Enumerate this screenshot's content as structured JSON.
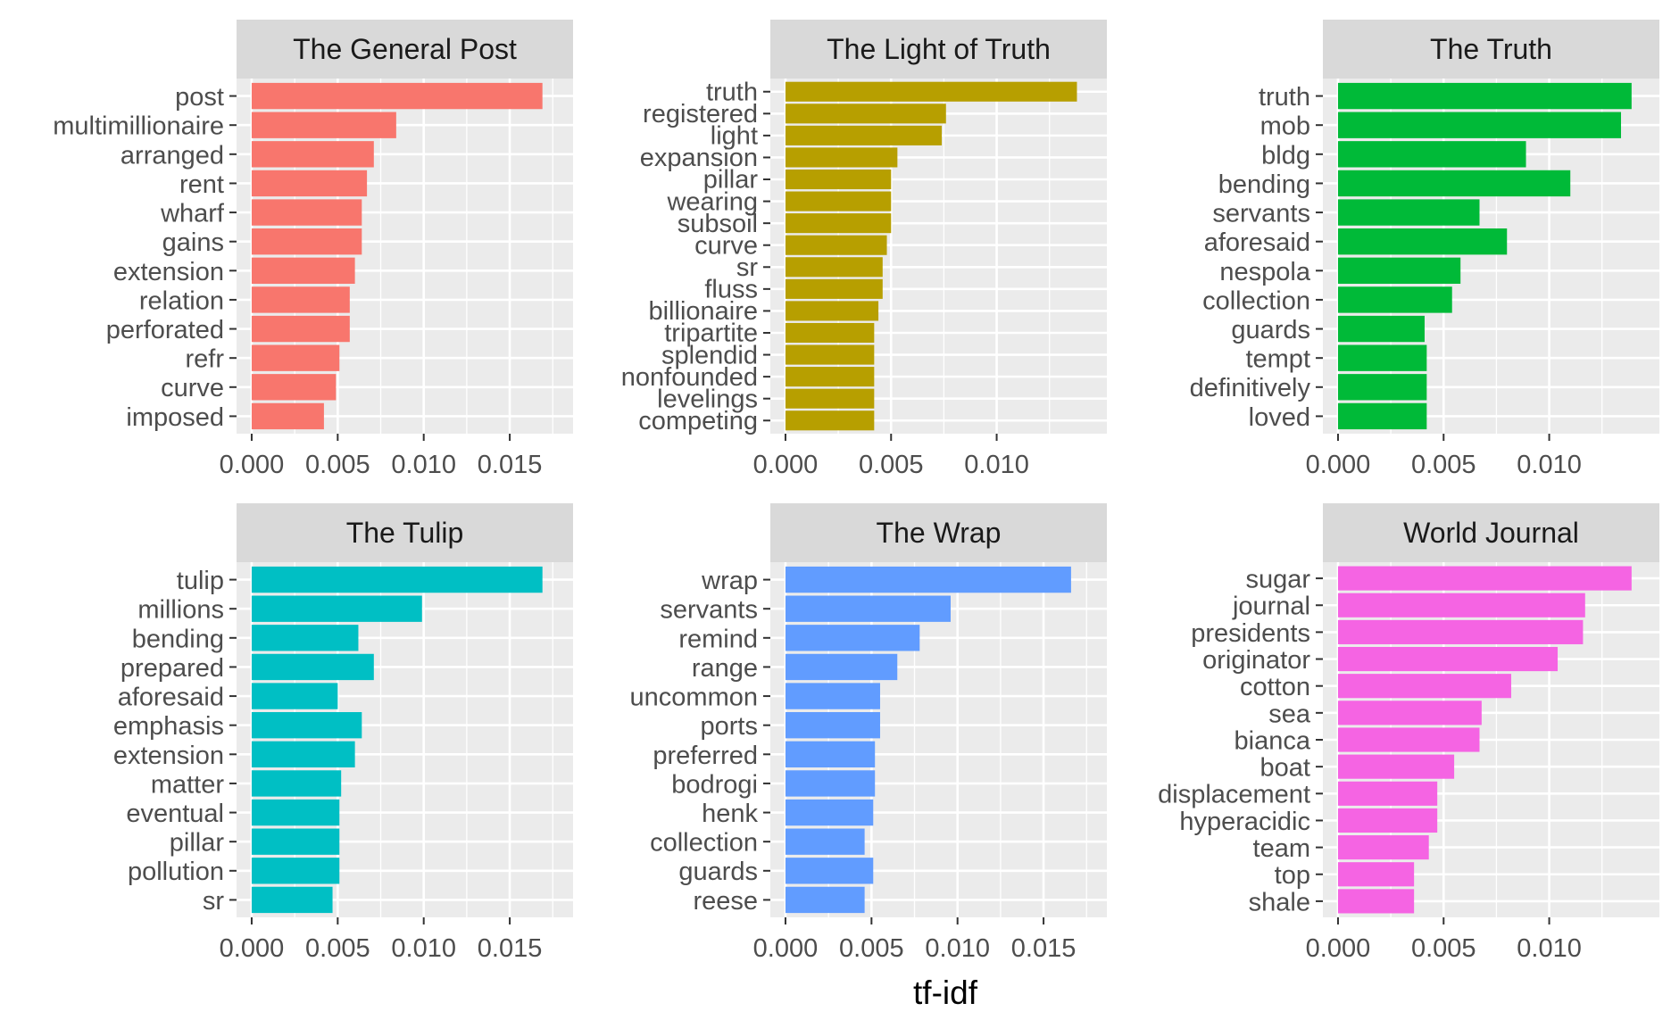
{
  "chart_data": {
    "type": "bar",
    "orientation": "horizontal",
    "xlabel": "tf-idf",
    "grid": true,
    "legend": "none",
    "facet_rows": 2,
    "facet_cols": 3,
    "panels": [
      {
        "title": "The General Post",
        "color": "#F8766D",
        "xlim": [
          0,
          0.0178
        ],
        "xticks": [
          "0.000",
          "0.005",
          "0.010",
          "0.015"
        ],
        "categories": [
          "post",
          "multimillionaire",
          "arranged",
          "rent",
          "wharf",
          "gains",
          "extension",
          "relation",
          "perforated",
          "refr",
          "curve",
          "imposed"
        ],
        "values": [
          0.0169,
          0.0084,
          0.0071,
          0.0067,
          0.0064,
          0.0064,
          0.006,
          0.0057,
          0.0057,
          0.0051,
          0.0049,
          0.0042
        ]
      },
      {
        "title": "The Light of Truth",
        "color": "#B79F00",
        "xlim": [
          0,
          0.0145
        ],
        "xticks": [
          "0.000",
          "0.005",
          "0.010"
        ],
        "categories": [
          "truth",
          "registered",
          "light",
          "expansion",
          "pillar",
          "wearing",
          "subsoil",
          "curve",
          "sr",
          "fluss",
          "billionaire",
          "tripartite",
          "splendid",
          "nonfounded",
          "levelings",
          "competing"
        ],
        "values": [
          0.0138,
          0.0076,
          0.0074,
          0.0053,
          0.005,
          0.005,
          0.005,
          0.0048,
          0.0046,
          0.0046,
          0.0044,
          0.0042,
          0.0042,
          0.0042,
          0.0042,
          0.0042
        ]
      },
      {
        "title": "The Truth",
        "color": "#00BA38",
        "xlim": [
          0,
          0.0145
        ],
        "xticks": [
          "0.000",
          "0.005",
          "0.010"
        ],
        "categories": [
          "truth",
          "mob",
          "bldg",
          "bending",
          "servants",
          "aforesaid",
          "nespola",
          "collection",
          "guards",
          "tempt",
          "definitively",
          "loved"
        ],
        "values": [
          0.0139,
          0.0134,
          0.0089,
          0.011,
          0.0067,
          0.008,
          0.0058,
          0.0054,
          0.0041,
          0.0042,
          0.0042,
          0.0042
        ]
      },
      {
        "title": "The Tulip",
        "color": "#00BFC4",
        "xlim": [
          0,
          0.0178
        ],
        "xticks": [
          "0.000",
          "0.005",
          "0.010",
          "0.015"
        ],
        "categories": [
          "tulip",
          "millions",
          "bending",
          "prepared",
          "aforesaid",
          "emphasis",
          "extension",
          "matter",
          "eventual",
          "pillar",
          "pollution",
          "sr"
        ],
        "values": [
          0.0169,
          0.0099,
          0.0062,
          0.0071,
          0.005,
          0.0064,
          0.006,
          0.0052,
          0.0051,
          0.0051,
          0.0051,
          0.0047
        ]
      },
      {
        "title": "The Wrap",
        "color": "#619CFF",
        "xlim": [
          0,
          0.0178
        ],
        "xticks": [
          "0.000",
          "0.005",
          "0.010",
          "0.015"
        ],
        "categories": [
          "wrap",
          "servants",
          "remind",
          "range",
          "uncommon",
          "ports",
          "preferred",
          "bodrogi",
          "henk",
          "collection",
          "guards",
          "reese"
        ],
        "values": [
          0.0166,
          0.0096,
          0.0078,
          0.0065,
          0.0055,
          0.0055,
          0.0052,
          0.0052,
          0.0051,
          0.0046,
          0.0051,
          0.0046
        ]
      },
      {
        "title": "World Journal",
        "color": "#F564E3",
        "xlim": [
          0,
          0.0145
        ],
        "xticks": [
          "0.000",
          "0.005",
          "0.010"
        ],
        "categories": [
          "sugar",
          "journal",
          "presidents",
          "originator",
          "cotton",
          "sea",
          "bianca",
          "boat",
          "displacement",
          "hyperacidic",
          "team",
          "top",
          "shale"
        ],
        "values": [
          0.0139,
          0.0117,
          0.0116,
          0.0104,
          0.0082,
          0.0068,
          0.0067,
          0.0055,
          0.0047,
          0.0047,
          0.0043,
          0.0036,
          0.0036
        ]
      }
    ]
  }
}
